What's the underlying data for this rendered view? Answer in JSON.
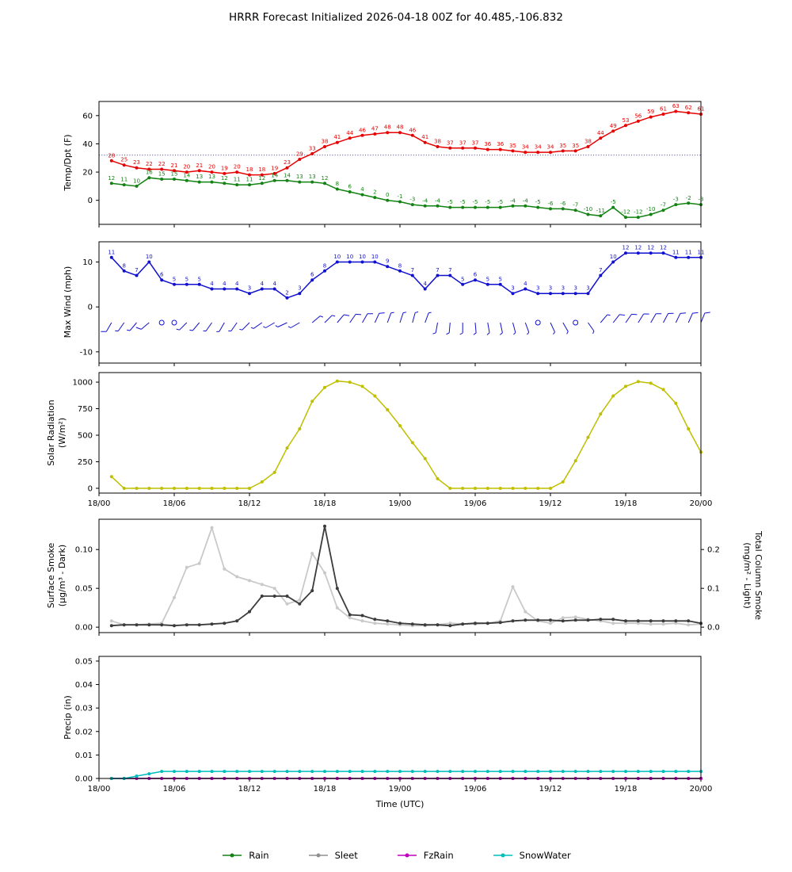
{
  "title": "HRRR Forecast Initialized 2026-04-18 00Z for 40.485,-106.832",
  "x_axis": {
    "label": "Time (UTC)",
    "tick_labels": [
      "18/00",
      "18/06",
      "18/12",
      "18/18",
      "19/00",
      "19/06",
      "19/12",
      "19/18",
      "20/00"
    ],
    "tick_hours": [
      0,
      6,
      12,
      18,
      24,
      30,
      36,
      42,
      48
    ],
    "range_hours": [
      0,
      48
    ],
    "start_hour": 1
  },
  "chart_data": [
    {
      "type": "line",
      "name": "temp-dpt",
      "ylabel": "Temp/Dpt (F)",
      "ylim": [
        -17,
        70
      ],
      "ytick_vals": [
        0,
        20,
        40,
        60
      ],
      "ytick_labels": [
        "0",
        "20",
        "40",
        "60"
      ],
      "reference_line": {
        "value": 32,
        "color": "#26267a",
        "style": "dotted"
      },
      "series": [
        {
          "name": "Temperature",
          "color": "#e60000",
          "point_labels": true,
          "values": [
            28,
            25,
            23,
            22,
            22,
            21,
            20,
            21,
            20,
            19,
            20,
            18,
            18,
            19,
            23,
            29,
            33,
            38,
            41,
            44,
            46,
            47,
            48,
            48,
            46,
            41,
            38,
            37,
            37,
            37,
            36,
            36,
            35,
            34,
            34,
            34,
            35,
            35,
            38,
            44,
            49,
            53,
            56,
            59,
            61,
            63,
            62,
            61
          ]
        },
        {
          "name": "Dew Point",
          "color": "#128212",
          "point_labels": true,
          "values": [
            12,
            11,
            10,
            16,
            15,
            15,
            14,
            13,
            13,
            12,
            11,
            11,
            12,
            14,
            14,
            13,
            13,
            12,
            8,
            6,
            4,
            2,
            0,
            -1,
            -3,
            -4,
            -4,
            -5,
            -5,
            -5,
            -5,
            -5,
            -4,
            -4,
            -5,
            -6,
            -6,
            -7,
            -10,
            -11,
            -5,
            -12,
            -12,
            -10,
            -7,
            -3,
            -2,
            -3
          ]
        }
      ]
    },
    {
      "type": "line+barbs",
      "name": "max-wind",
      "ylabel": "Max Wind (mph)",
      "ylim": [
        -12.5,
        14.5
      ],
      "ytick_vals": [
        -10,
        0,
        10
      ],
      "ytick_labels": [
        "-10",
        "0",
        "10"
      ],
      "barb_y": -3.5,
      "barb_angles": [
        210,
        215,
        220,
        230,
        0,
        0,
        225,
        220,
        215,
        210,
        215,
        225,
        235,
        240,
        245,
        240,
        50,
        45,
        40,
        35,
        30,
        25,
        20,
        18,
        15,
        20,
        190,
        185,
        180,
        175,
        170,
        168,
        165,
        160,
        0,
        155,
        150,
        0,
        145,
        40,
        38,
        35,
        32,
        30,
        28,
        26,
        24,
        22
      ],
      "series": [
        {
          "name": "Max Wind",
          "color": "#1010d0",
          "point_labels": true,
          "values": [
            11,
            8,
            7,
            10,
            6,
            5,
            5,
            5,
            4,
            4,
            4,
            3,
            4,
            4,
            2,
            3,
            6,
            8,
            10,
            10,
            10,
            10,
            9,
            8,
            7,
            4,
            7,
            7,
            5,
            6,
            5,
            5,
            3,
            4,
            3,
            3,
            3,
            3,
            3,
            7,
            10,
            12,
            12,
            12,
            12,
            11,
            11,
            11
          ]
        }
      ]
    },
    {
      "type": "line",
      "name": "solar-radiation",
      "ylabel": "Solar Radiation",
      "ylabel2": "(W/m²)",
      "ylim": [
        -45,
        1090
      ],
      "ytick_vals": [
        0,
        250,
        500,
        750,
        1000
      ],
      "ytick_labels": [
        "0",
        "250",
        "500",
        "750",
        "1000"
      ],
      "show_x_labels": true,
      "series": [
        {
          "name": "Solar Radiation",
          "color": "#bfbf00",
          "values": [
            110,
            0,
            0,
            0,
            0,
            0,
            0,
            0,
            0,
            0,
            0,
            0,
            60,
            150,
            380,
            560,
            820,
            950,
            1010,
            1000,
            960,
            870,
            740,
            590,
            430,
            280,
            90,
            0,
            0,
            0,
            0,
            0,
            0,
            0,
            0,
            0,
            60,
            260,
            480,
            700,
            870,
            960,
            1005,
            990,
            930,
            800,
            560,
            340
          ]
        }
      ]
    },
    {
      "type": "line",
      "name": "smoke",
      "ylabel": "Surface Smoke",
      "ylabel2": "(μg/m³ - Dark)",
      "ylabel_right": "Total Column Smoke",
      "ylabel_right2": "(mg/m² - Light)",
      "ylim": [
        -0.007,
        0.139
      ],
      "ytick_vals": [
        0,
        0.05,
        0.1
      ],
      "ytick_labels": [
        "0.00",
        "0.05",
        "0.10"
      ],
      "yticks_right": {
        "at": [
          0,
          0.05,
          0.1
        ],
        "labels": [
          "0.0",
          "0.1",
          "0.2"
        ]
      },
      "series": [
        {
          "name": "Total Column Smoke",
          "color": "#c9c9c9",
          "width": 1.8,
          "values": [
            0.008,
            0.003,
            0.003,
            0.004,
            0.005,
            0.038,
            0.077,
            0.082,
            0.128,
            0.075,
            0.065,
            0.06,
            0.055,
            0.05,
            0.03,
            0.035,
            0.095,
            0.07,
            0.025,
            0.012,
            0.008,
            0.005,
            0.004,
            0.003,
            0.002,
            0.002,
            0.003,
            0.005,
            0.004,
            0.004,
            0.005,
            0.008,
            0.052,
            0.02,
            0.008,
            0.005,
            0.012,
            0.013,
            0.01,
            0.008,
            0.005,
            0.005,
            0.005,
            0.004,
            0.004,
            0.005,
            0.003,
            0.004
          ]
        },
        {
          "name": "Surface Smoke",
          "color": "#3c3c3c",
          "width": 1.8,
          "values": [
            0.002,
            0.003,
            0.003,
            0.003,
            0.003,
            0.002,
            0.003,
            0.003,
            0.004,
            0.005,
            0.008,
            0.02,
            0.04,
            0.04,
            0.04,
            0.03,
            0.047,
            0.13,
            0.05,
            0.016,
            0.015,
            0.01,
            0.008,
            0.005,
            0.004,
            0.003,
            0.003,
            0.002,
            0.004,
            0.005,
            0.005,
            0.006,
            0.008,
            0.009,
            0.009,
            0.009,
            0.008,
            0.009,
            0.009,
            0.01,
            0.01,
            0.008,
            0.008,
            0.008,
            0.008,
            0.008,
            0.008,
            0.005
          ]
        }
      ]
    },
    {
      "type": "line",
      "name": "precip",
      "ylabel": "Precip (in)",
      "ylim": [
        0,
        0.052
      ],
      "ytick_vals": [
        0,
        0.01,
        0.02,
        0.03,
        0.04,
        0.05
      ],
      "ytick_labels": [
        "0.00",
        "0.01",
        "0.02",
        "0.03",
        "0.04",
        "0.05"
      ],
      "show_x_labels": true,
      "series": [
        {
          "name": "Rain",
          "color": "#128212",
          "constant": 0
        },
        {
          "name": "Sleet",
          "color": "#909090",
          "constant": 0
        },
        {
          "name": "FzRain",
          "color": "#bf00bf",
          "constant": 0
        },
        {
          "name": "SnowWater",
          "color": "#00bdbd",
          "values": [
            0,
            0,
            0.001,
            0.002,
            0.003,
            0.003,
            0.003,
            0.003,
            0.003,
            0.003,
            0.003,
            0.003,
            0.003,
            0.003,
            0.003,
            0.003,
            0.003,
            0.003,
            0.003,
            0.003,
            0.003,
            0.003,
            0.003,
            0.003,
            0.003,
            0.003,
            0.003,
            0.003,
            0.003,
            0.003,
            0.003,
            0.003,
            0.003,
            0.003,
            0.003,
            0.003,
            0.003,
            0.003,
            0.003,
            0.003,
            0.003,
            0.003,
            0.003,
            0.003,
            0.003,
            0.003,
            0.003,
            0.003
          ]
        }
      ]
    }
  ],
  "legend": {
    "items": [
      {
        "label": "Rain",
        "color": "#128212"
      },
      {
        "label": "Sleet",
        "color": "#909090"
      },
      {
        "label": "FzRain",
        "color": "#bf00bf"
      },
      {
        "label": "SnowWater",
        "color": "#00bdbd"
      }
    ]
  }
}
